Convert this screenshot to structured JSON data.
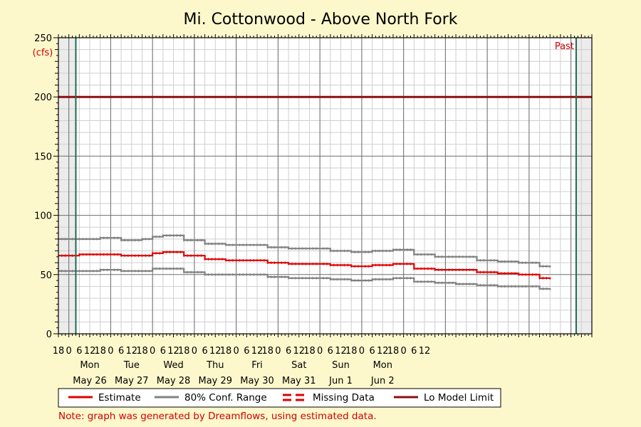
{
  "chart_data": {
    "type": "line",
    "title": "Mi. Cottonwood - Above North Fork",
    "ylabel": "(cfs)",
    "ylim": [
      0,
      250
    ],
    "yticks": [
      0,
      50,
      100,
      150,
      200,
      250
    ],
    "x_hour_ticks": [
      "18",
      "0",
      "6",
      "12",
      "18",
      "0",
      "6",
      "12",
      "18",
      "0",
      "6",
      "12",
      "18",
      "0",
      "6",
      "12",
      "18",
      "0",
      "6",
      "12",
      "18",
      "0",
      "6",
      "12",
      "18",
      "0",
      "6",
      "12",
      "18",
      "0",
      "6",
      "12",
      "18",
      "0",
      "6",
      "12"
    ],
    "day_labels": [
      {
        "weekday": "Mon",
        "date": "May 26"
      },
      {
        "weekday": "Tue",
        "date": "May 27"
      },
      {
        "weekday": "Wed",
        "date": "May 28"
      },
      {
        "weekday": "Thu",
        "date": "May 29"
      },
      {
        "weekday": "Fri",
        "date": "May 30"
      },
      {
        "weekday": "Sat",
        "date": "May 31"
      },
      {
        "weekday": "Sun",
        "date": "Jun 1"
      },
      {
        "weekday": "Mon",
        "date": "Jun 2"
      }
    ],
    "x_unit": "hours since May 25 18:00",
    "lo_model_limit": 200,
    "markers": [
      {
        "x": 10,
        "label": ""
      },
      {
        "x": 297,
        "label": "Past"
      }
    ],
    "shaded_regions": [
      [
        0,
        10
      ],
      [
        297,
        306
      ]
    ],
    "series": [
      {
        "name": "Estimate",
        "color": "#e00000",
        "x": [
          0,
          12,
          24,
          36,
          48,
          54,
          60,
          72,
          84,
          96,
          108,
          120,
          132,
          144,
          156,
          168,
          180,
          192,
          204,
          216,
          228,
          240,
          252,
          264,
          276,
          282
        ],
        "y": [
          66,
          67,
          67,
          66,
          66,
          68,
          69,
          66,
          63,
          62,
          62,
          60,
          59,
          59,
          58,
          57,
          58,
          59,
          55,
          54,
          54,
          52,
          51,
          50,
          47,
          46
        ]
      },
      {
        "name": "80% Conf. Range",
        "color": "#808080",
        "x": [
          0,
          12,
          24,
          36,
          48,
          54,
          60,
          72,
          84,
          96,
          108,
          120,
          132,
          144,
          156,
          168,
          180,
          192,
          204,
          216,
          228,
          240,
          252,
          264,
          276,
          282
        ],
        "y": [
          80,
          80,
          81,
          79,
          80,
          82,
          83,
          79,
          76,
          75,
          75,
          73,
          72,
          72,
          70,
          69,
          70,
          71,
          67,
          65,
          65,
          62,
          61,
          60,
          57,
          56
        ]
      },
      {
        "name": "",
        "color": "#808080",
        "x": [
          0,
          12,
          24,
          36,
          48,
          54,
          60,
          72,
          84,
          96,
          108,
          120,
          132,
          144,
          156,
          168,
          180,
          192,
          204,
          216,
          228,
          240,
          252,
          264,
          276,
          282
        ],
        "y": [
          53,
          53,
          54,
          53,
          53,
          55,
          55,
          52,
          50,
          50,
          50,
          48,
          47,
          47,
          46,
          45,
          46,
          47,
          44,
          43,
          42,
          41,
          40,
          40,
          38,
          37
        ]
      }
    ],
    "legend": {
      "placement": "bottom",
      "entries": [
        {
          "label": "Estimate",
          "color": "#e00000",
          "style": "solid"
        },
        {
          "label": "80% Conf. Range",
          "color": "#808080",
          "style": "solid"
        },
        {
          "label": "Missing Data",
          "color": "#e00000",
          "style": "dashed"
        },
        {
          "label": "Lo Model Limit",
          "color": "#8b1010",
          "style": "solid"
        }
      ]
    },
    "note": "Note: graph was generated by Dreamflows, using estimated data.",
    "grid": true
  }
}
